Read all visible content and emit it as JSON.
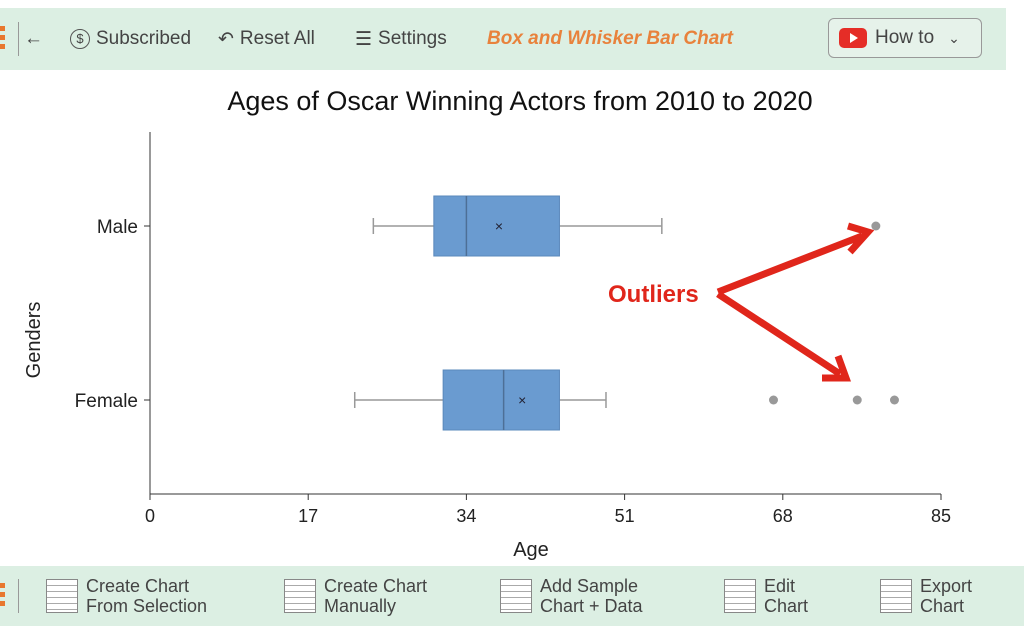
{
  "toolbar": {
    "back": "←",
    "subscribed": "Subscribed",
    "reset": "Reset All",
    "settings": "Settings",
    "title": "Box and Whisker Bar Chart",
    "howto": "How to"
  },
  "bottom": {
    "b1": [
      "Create Chart",
      "From Selection"
    ],
    "b2": [
      "Create Chart",
      "Manually"
    ],
    "b3": [
      "Add Sample",
      "Chart + Data"
    ],
    "b4": [
      "Edit",
      "Chart"
    ],
    "b5": [
      "Export",
      "Chart"
    ]
  },
  "colors": {
    "box": "#6a9bd0",
    "annotation": "#e0261b",
    "toolbar": "#dcefe3"
  },
  "chart_data": {
    "type": "box",
    "orientation": "horizontal",
    "title": "Ages of Oscar Winning Actors from 2010 to 2020",
    "xlabel": "Age",
    "ylabel": "Genders",
    "xlim": [
      0,
      85
    ],
    "xticks": [
      0,
      17,
      34,
      51,
      68,
      85
    ],
    "categories": [
      "Male",
      "Female"
    ],
    "series": [
      {
        "name": "Male",
        "min": 24,
        "q1": 30.5,
        "median": 34,
        "mean": 37.5,
        "q3": 44,
        "max": 55,
        "outliers": [
          78
        ]
      },
      {
        "name": "Female",
        "min": 22,
        "q1": 31.5,
        "median": 38,
        "mean": 40,
        "q3": 44,
        "max": 49,
        "outliers": [
          67,
          76,
          80
        ]
      }
    ],
    "annotation": "Outliers"
  }
}
